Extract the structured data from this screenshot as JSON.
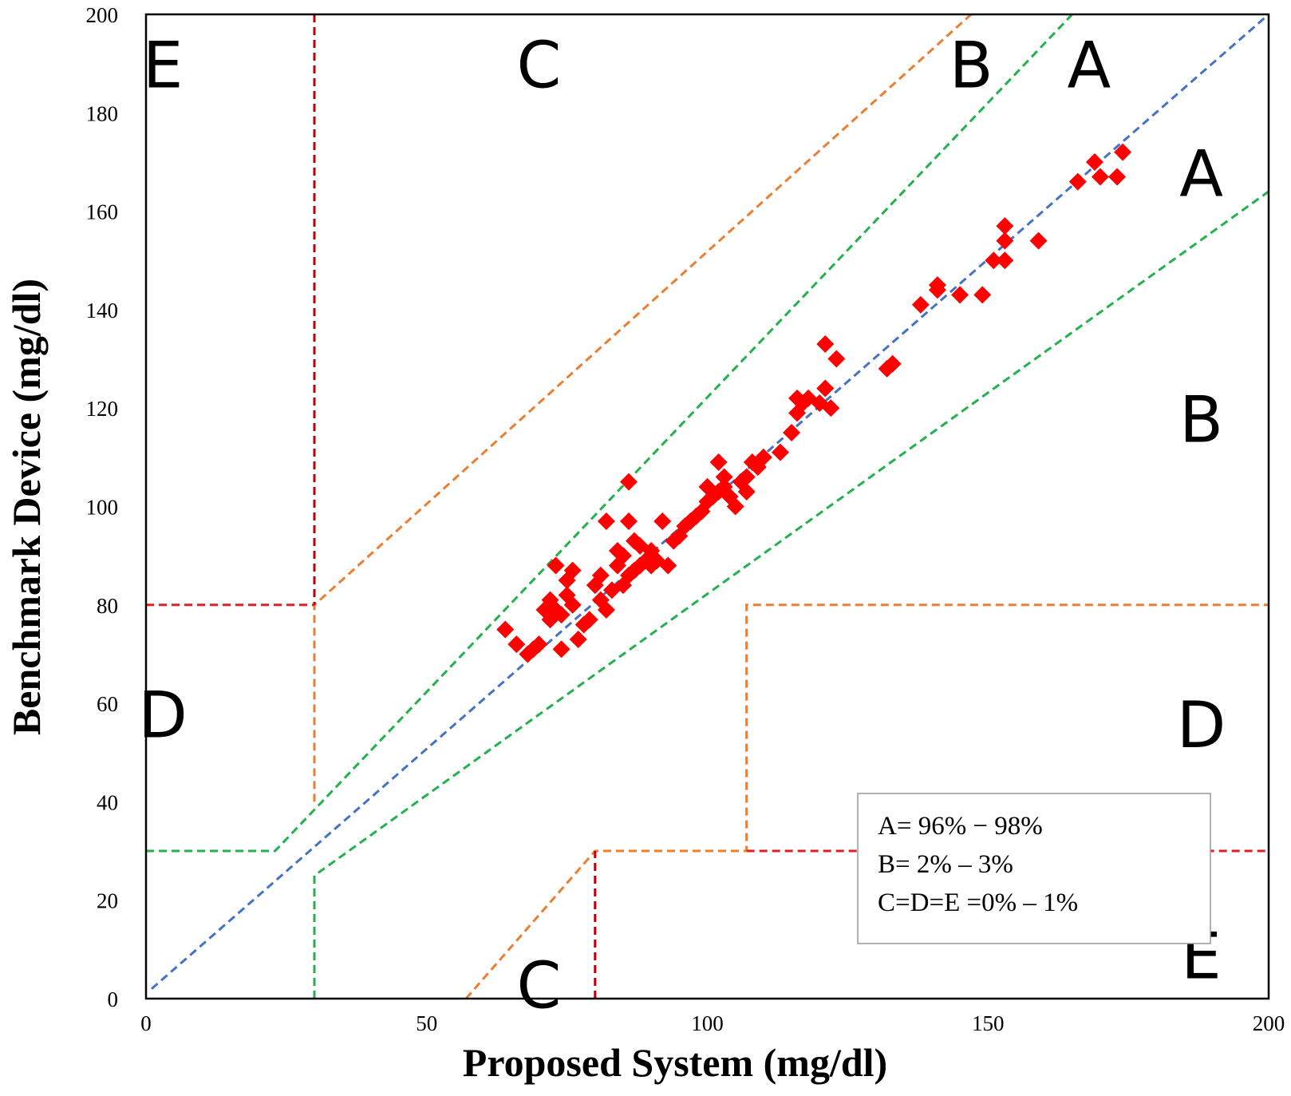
{
  "chart_data": {
    "type": "scatter",
    "title": "",
    "xlabel": "Proposed System  (mg/dl)",
    "ylabel": "Benchmark Device (mg/dl)",
    "xlim": [
      0,
      200
    ],
    "ylim": [
      0,
      200
    ],
    "x_ticks": [
      0,
      50,
      100,
      150,
      200
    ],
    "y_ticks": [
      0,
      20,
      40,
      60,
      80,
      100,
      120,
      140,
      160,
      180,
      200
    ],
    "grid": false,
    "marker": "diamond",
    "colors": {
      "points": "#ff0000",
      "identity": "#4472c4",
      "zoneA": "#22b14c",
      "zoneC": "#ed7d31",
      "zoneDE": "#e02020",
      "zoneE": "#c00000"
    },
    "zone_lines": [
      {
        "name": "identity",
        "color": "#4472c4",
        "points": [
          [
            1,
            2
          ],
          [
            200,
            200
          ]
        ]
      },
      {
        "name": "A-upper",
        "color": "#22b14c",
        "points": [
          [
            0,
            30
          ],
          [
            23,
            30
          ],
          [
            165,
            200
          ]
        ]
      },
      {
        "name": "A-lower",
        "color": "#22b14c",
        "points": [
          [
            30,
            0
          ],
          [
            30,
            25
          ],
          [
            200,
            164
          ]
        ]
      },
      {
        "name": "C-upper",
        "color": "#ed7d31",
        "points": [
          [
            30,
            40
          ],
          [
            30,
            80
          ],
          [
            147,
            200
          ]
        ]
      },
      {
        "name": "C-lower",
        "color": "#ed7d31",
        "points": [
          [
            57,
            0
          ],
          [
            80,
            30
          ],
          [
            107,
            30
          ],
          [
            107,
            80
          ],
          [
            200,
            80
          ]
        ]
      },
      {
        "name": "E-upper-vertical",
        "color": "#c00000",
        "points": [
          [
            30,
            200
          ],
          [
            30,
            80
          ]
        ]
      },
      {
        "name": "D-left-horizontal",
        "color": "#e02020",
        "points": [
          [
            0,
            80
          ],
          [
            30,
            80
          ]
        ]
      },
      {
        "name": "E-lower-vertical",
        "color": "#c00000",
        "points": [
          [
            80,
            0
          ],
          [
            80,
            30
          ]
        ]
      },
      {
        "name": "D-right-horizontal",
        "color": "#e02020",
        "points": [
          [
            107,
            30
          ],
          [
            200,
            30
          ]
        ]
      }
    ],
    "zone_labels": [
      {
        "text": "E",
        "x": 3,
        "y": 190
      },
      {
        "text": "C",
        "x": 70,
        "y": 190
      },
      {
        "text": "B",
        "x": 147,
        "y": 190
      },
      {
        "text": "A",
        "x": 168,
        "y": 190
      },
      {
        "text": "A",
        "x": 188,
        "y": 168
      },
      {
        "text": "B",
        "x": 188,
        "y": 118
      },
      {
        "text": "D",
        "x": 3,
        "y": 58
      },
      {
        "text": "D",
        "x": 188,
        "y": 56
      },
      {
        "text": "C",
        "x": 70,
        "y": 3
      },
      {
        "text": "E",
        "x": 188,
        "y": 9
      }
    ],
    "series": [
      {
        "name": "measurements",
        "x": [
          64,
          66,
          68,
          69,
          70,
          71,
          72,
          72,
          73,
          73,
          74,
          74,
          75,
          75,
          76,
          76,
          77,
          78,
          79,
          80,
          81,
          81,
          82,
          82,
          83,
          84,
          84,
          85,
          85,
          86,
          86,
          86,
          87,
          87,
          88,
          88,
          89,
          90,
          90,
          91,
          92,
          93,
          94,
          95,
          96,
          97,
          98,
          99,
          100,
          100,
          101,
          102,
          102,
          103,
          103,
          104,
          105,
          106,
          107,
          107,
          108,
          109,
          110,
          113,
          115,
          116,
          116,
          117,
          118,
          120,
          121,
          121,
          122,
          123,
          132,
          133,
          138,
          141,
          141,
          145,
          149,
          151,
          153,
          153,
          153,
          159,
          166,
          169,
          170,
          173,
          174
        ],
        "y": [
          75,
          72,
          70,
          71,
          72,
          79,
          81,
          77,
          88,
          79,
          78,
          71,
          85,
          82,
          80,
          87,
          73,
          76,
          77,
          84,
          81,
          86,
          79,
          97,
          83,
          88,
          91,
          90,
          84,
          97,
          105,
          86,
          93,
          87,
          88,
          92,
          89,
          91,
          88,
          89,
          97,
          88,
          93,
          94,
          96,
          97,
          98,
          99,
          104,
          101,
          102,
          103,
          109,
          104,
          106,
          102,
          100,
          105,
          106,
          103,
          109,
          108,
          110,
          111,
          115,
          122,
          119,
          121,
          122,
          121,
          133,
          124,
          120,
          130,
          128,
          129,
          141,
          145,
          144,
          143,
          143,
          150,
          157,
          150,
          154,
          154,
          166,
          170,
          167,
          167,
          172
        ]
      }
    ],
    "legend_box": {
      "position": "bottom-right",
      "lines": [
        "A= 96% − 98%",
        "B= 2% –  3%",
        "C=D=E =0% –  1%"
      ]
    }
  }
}
